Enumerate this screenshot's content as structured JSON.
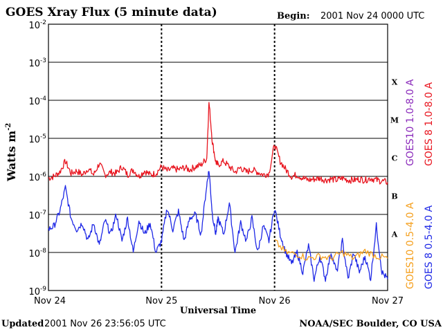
{
  "title": "GOES Xray Flux (5 minute data)",
  "begin_label": "Begin:",
  "begin_value": "2001 Nov 24 0000 UTC",
  "ylabel": "Watts m",
  "ylabel_sup": "-2",
  "xlabel": "Universal Time",
  "footer_left_label": "Updated",
  "footer_left_value": "2001 Nov 26 23:56:05 UTC",
  "footer_right": "NOAA/SEC Boulder, CO USA",
  "chart_data": {
    "type": "line",
    "x_ticks": [
      "Nov 24",
      "Nov 25",
      "Nov 26",
      "Nov 27"
    ],
    "x_range_days": [
      0,
      3
    ],
    "y_scale": "log",
    "ylim": [
      1e-09,
      0.01
    ],
    "y_ticks": [
      {
        "mantissa": "10",
        "exp": "-2",
        "value": 0.01
      },
      {
        "mantissa": "10",
        "exp": "-3",
        "value": 0.001
      },
      {
        "mantissa": "10",
        "exp": "-4",
        "value": 0.0001
      },
      {
        "mantissa": "10",
        "exp": "-5",
        "value": 1e-05
      },
      {
        "mantissa": "10",
        "exp": "-6",
        "value": 1e-06
      },
      {
        "mantissa": "10",
        "exp": "-7",
        "value": 1e-07
      },
      {
        "mantissa": "10",
        "exp": "-8",
        "value": 1e-08
      },
      {
        "mantissa": "10",
        "exp": "-9",
        "value": 1e-09
      }
    ],
    "flare_classes": [
      {
        "label": "X",
        "value": 0.0001
      },
      {
        "label": "M",
        "value": 1e-05
      },
      {
        "label": "C",
        "value": 1e-06
      },
      {
        "label": "B",
        "value": 1e-07
      },
      {
        "label": "A",
        "value": 1e-08
      }
    ],
    "grid": "horizontal lines at each decade; dashed vertical lines at day boundaries",
    "legend": [
      {
        "name": "GOES10 1.0-8.0 A",
        "color": "#8b2bbb"
      },
      {
        "name": "GOES 8 1.0-8.0 A",
        "color": "#e8141e"
      },
      {
        "name": "GOES10 0.5-4.0 A",
        "color": "#f5a01e"
      },
      {
        "name": "GOES 8 0.5-4.0 A",
        "color": "#1e28e6"
      }
    ],
    "series": [
      {
        "name": "GOES 8 1.0-8.0 A",
        "color": "#e8141e",
        "x_days": [
          0,
          0.05,
          0.1,
          0.15,
          0.2,
          0.25,
          0.3,
          0.35,
          0.4,
          0.45,
          0.5,
          0.55,
          0.6,
          0.65,
          0.7,
          0.75,
          0.8,
          0.85,
          0.9,
          0.95,
          1.0,
          1.05,
          1.1,
          1.15,
          1.2,
          1.25,
          1.3,
          1.35,
          1.4,
          1.42,
          1.45,
          1.48,
          1.5,
          1.55,
          1.6,
          1.65,
          1.7,
          1.75,
          1.8,
          1.85,
          1.9,
          1.95,
          2.0,
          2.05,
          2.1,
          2.15,
          2.2,
          2.25,
          2.3,
          2.35,
          2.4,
          2.45,
          2.5,
          2.55,
          2.6,
          2.65,
          2.7,
          2.75,
          2.8,
          2.85,
          2.9,
          2.95,
          3.0
        ],
        "values": [
          9e-07,
          1e-06,
          1.3e-06,
          2.5e-06,
          1.2e-06,
          1.4e-06,
          1.1e-06,
          1.6e-06,
          1.1e-06,
          2.2e-06,
          1.1e-06,
          1.3e-06,
          1.2e-06,
          1.8e-06,
          1.1e-06,
          1.5e-06,
          1e-06,
          1.4e-06,
          1.1e-06,
          1.2e-06,
          1.8e-06,
          1.4e-06,
          1.6e-06,
          1.5e-06,
          1.7e-06,
          1.5e-06,
          1.8e-06,
          2e-06,
          3e-06,
          9e-05,
          8e-06,
          2.4e-06,
          2e-06,
          2.5e-06,
          1.8e-06,
          1.3e-06,
          1.7e-06,
          1.3e-06,
          1.5e-06,
          1.3e-06,
          1.1e-06,
          1.2e-06,
          7e-06,
          2.5e-06,
          1.5e-06,
          1e-06,
          1.1e-06,
          9e-07,
          8e-07,
          8.5e-07,
          9e-07,
          8e-07,
          8.5e-07,
          8e-07,
          9e-07,
          8e-07,
          8e-07,
          8.5e-07,
          8e-07,
          9e-07,
          8e-07,
          7.5e-07,
          7e-07
        ]
      },
      {
        "name": "GOES 8 0.5-4.0 A",
        "color": "#1e28e6",
        "x_days": [
          0,
          0.05,
          0.1,
          0.15,
          0.2,
          0.25,
          0.3,
          0.35,
          0.4,
          0.45,
          0.5,
          0.55,
          0.6,
          0.65,
          0.7,
          0.75,
          0.8,
          0.85,
          0.9,
          0.95,
          1.0,
          1.05,
          1.1,
          1.15,
          1.2,
          1.25,
          1.3,
          1.35,
          1.4,
          1.42,
          1.45,
          1.48,
          1.5,
          1.55,
          1.6,
          1.65,
          1.7,
          1.75,
          1.8,
          1.85,
          1.9,
          1.95,
          2.0,
          2.05,
          2.1,
          2.15,
          2.2,
          2.25,
          2.3,
          2.35,
          2.4,
          2.45,
          2.5,
          2.55,
          2.6,
          2.65,
          2.7,
          2.75,
          2.8,
          2.85,
          2.9,
          2.95,
          3.0
        ],
        "values": [
          4e-08,
          5e-08,
          1.2e-07,
          5e-07,
          8e-08,
          4e-08,
          6e-08,
          2e-08,
          6e-08,
          1.5e-08,
          7e-08,
          3e-08,
          1e-07,
          2e-08,
          8e-08,
          1e-08,
          7e-08,
          3e-08,
          6e-08,
          1e-08,
          2e-08,
          1.5e-07,
          4e-08,
          1.2e-07,
          2e-08,
          8e-08,
          1e-07,
          3e-08,
          6e-07,
          1.5e-06,
          1e-07,
          3e-08,
          8e-08,
          3e-08,
          2e-07,
          1e-08,
          6e-08,
          2e-08,
          8e-08,
          1e-08,
          5e-08,
          2e-08,
          1.5e-07,
          3e-08,
          1e-08,
          5e-09,
          1e-08,
          3e-09,
          1.5e-08,
          2e-09,
          8e-09,
          2e-09,
          1e-08,
          3e-09,
          2e-08,
          2e-09,
          1e-08,
          3e-09,
          8e-09,
          2e-09,
          5e-08,
          3e-09,
          2e-09
        ]
      },
      {
        "name": "GOES10 0.5-4.0 A",
        "color": "#f5a01e",
        "x_days": [
          2.0,
          2.1,
          2.2,
          2.3,
          2.4,
          2.5,
          2.6,
          2.7,
          2.8,
          2.9,
          3.0
        ],
        "values": [
          2e-08,
          1e-08,
          9e-09,
          7e-09,
          8e-09,
          7e-09,
          1e-08,
          7e-09,
          1.1e-08,
          8e-09,
          7e-09
        ]
      }
    ]
  }
}
